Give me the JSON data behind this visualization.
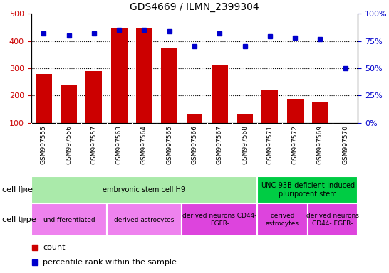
{
  "title": "GDS4669 / ILMN_2399304",
  "samples": [
    "GSM997555",
    "GSM997556",
    "GSM997557",
    "GSM997563",
    "GSM997564",
    "GSM997565",
    "GSM997566",
    "GSM997567",
    "GSM997568",
    "GSM997571",
    "GSM997572",
    "GSM997569",
    "GSM997570"
  ],
  "counts": [
    280,
    240,
    290,
    447,
    447,
    375,
    130,
    312,
    130,
    222,
    188,
    175,
    100
  ],
  "percentiles": [
    82,
    80,
    82,
    85,
    85,
    84,
    70,
    82,
    70,
    79,
    78,
    77,
    50
  ],
  "bar_color": "#cc0000",
  "dot_color": "#0000cc",
  "ylim_left": [
    100,
    500
  ],
  "ylim_right": [
    0,
    100
  ],
  "yticks_left": [
    100,
    200,
    300,
    400,
    500
  ],
  "yticks_right": [
    0,
    25,
    50,
    75,
    100
  ],
  "grid_yticks": [
    200,
    300,
    400
  ],
  "tick_bg_color": "#d0d0d0",
  "cell_line_groups": [
    {
      "label": "embryonic stem cell H9",
      "start": 0,
      "end": 9,
      "color": "#aaeaaa"
    },
    {
      "label": "UNC-93B-deficient-induced\npluripotent stem",
      "start": 9,
      "end": 13,
      "color": "#00cc44"
    }
  ],
  "cell_type_groups": [
    {
      "label": "undifferentiated",
      "start": 0,
      "end": 3,
      "color": "#ee82ee"
    },
    {
      "label": "derived astrocytes",
      "start": 3,
      "end": 6,
      "color": "#ee82ee"
    },
    {
      "label": "derived neurons CD44-\nEGFR-",
      "start": 6,
      "end": 9,
      "color": "#dd44dd"
    },
    {
      "label": "derived\nastrocytes",
      "start": 9,
      "end": 11,
      "color": "#dd44dd"
    },
    {
      "label": "derived neurons\nCD44- EGFR-",
      "start": 11,
      "end": 13,
      "color": "#dd44dd"
    }
  ],
  "cell_line_label": "cell line",
  "cell_type_label": "cell type",
  "legend_count": "count",
  "legend_percentile": "percentile rank within the sample"
}
